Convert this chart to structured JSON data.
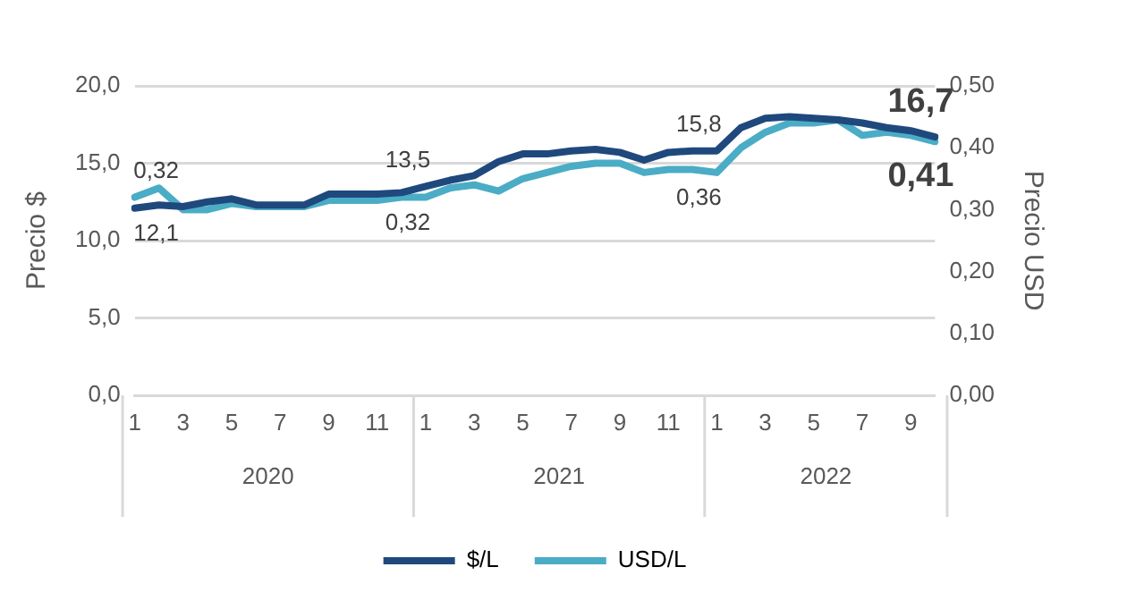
{
  "chart_data": {
    "type": "line",
    "ylabel": "Precio $",
    "y2label": "Precio USD",
    "categories": [
      "1",
      null,
      "3",
      null,
      "5",
      null,
      "7",
      null,
      "9",
      null,
      "11",
      null,
      "1",
      null,
      "3",
      null,
      "5",
      null,
      "7",
      null,
      "9",
      null,
      "11",
      null,
      "1",
      null,
      "3",
      null,
      "5",
      null,
      "7",
      null,
      "9",
      null
    ],
    "annotations": [
      "2020",
      "2021",
      "2022"
    ],
    "series": [
      {
        "name": "$/L",
        "color": "#1f497d",
        "values": [
          12.1,
          12.3,
          12.2,
          12.5,
          12.7,
          12.3,
          12.3,
          12.3,
          13.0,
          13.0,
          13.0,
          13.1,
          13.5,
          13.9,
          14.2,
          15.1,
          15.6,
          15.6,
          15.8,
          15.9,
          15.7,
          15.2,
          15.7,
          15.8,
          15.8,
          17.3,
          17.9,
          18.0,
          17.9,
          17.8,
          17.6,
          17.3,
          17.1,
          16.7
        ],
        "value_labels": [
          "12,1",
          null,
          null,
          null,
          null,
          null,
          null,
          null,
          null,
          null,
          null,
          null,
          "13,5",
          null,
          null,
          null,
          null,
          null,
          null,
          null,
          null,
          null,
          null,
          null,
          "15,8",
          null,
          null,
          null,
          null,
          null,
          null,
          null,
          null,
          "16,7"
        ]
      },
      {
        "name": "USD/L",
        "color": "#4bacc6",
        "axis": "y2",
        "values": [
          0.32,
          0.335,
          0.3,
          0.3,
          0.31,
          0.305,
          0.305,
          0.305,
          0.315,
          0.315,
          0.315,
          0.32,
          0.32,
          0.335,
          0.34,
          0.33,
          0.35,
          0.36,
          0.37,
          0.375,
          0.375,
          0.36,
          0.365,
          0.365,
          0.36,
          0.4,
          0.425,
          0.44,
          0.44,
          0.445,
          0.42,
          0.425,
          0.42,
          0.41
        ],
        "value_labels": [
          "0,32",
          null,
          null,
          null,
          null,
          null,
          null,
          null,
          null,
          null,
          null,
          null,
          "0,32",
          null,
          null,
          null,
          null,
          null,
          null,
          null,
          null,
          null,
          null,
          null,
          "0,36",
          null,
          null,
          null,
          null,
          null,
          null,
          null,
          null,
          "0,41"
        ]
      }
    ],
    "ylim": [
      0,
      20
    ],
    "yticks": [
      {
        "value": 0,
        "label": "0,0"
      },
      {
        "value": 5,
        "label": "5,0"
      },
      {
        "value": 10,
        "label": "10,0"
      },
      {
        "value": 15,
        "label": "15,0"
      },
      {
        "value": 20,
        "label": "20,0"
      }
    ],
    "y2lim": [
      0,
      0.5
    ],
    "y2ticks": [
      {
        "value": 0,
        "label": "0,00"
      },
      {
        "value": 0.1,
        "label": "0,10"
      },
      {
        "value": 0.2,
        "label": "0,20"
      },
      {
        "value": 0.3,
        "label": "0,30"
      },
      {
        "value": 0.4,
        "label": "0,40"
      },
      {
        "value": 0.5,
        "label": "0,50"
      }
    ],
    "grid": "y",
    "legend": "bottom",
    "marker": "none",
    "line_style": "solid"
  }
}
